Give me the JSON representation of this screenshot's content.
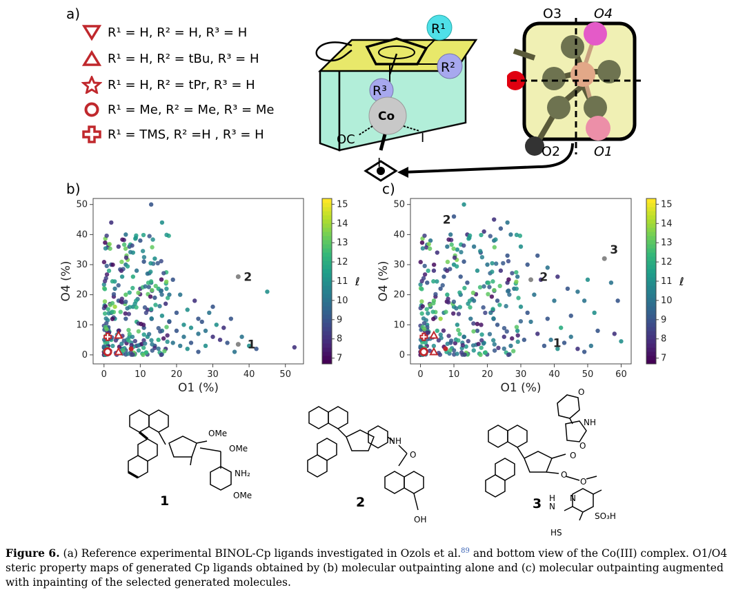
{
  "panel_labels": {
    "a": "a)",
    "b": "b)",
    "c": "c)"
  },
  "legend": [
    {
      "symbol": "triangle-down-icon",
      "text": "R¹ = H, R² = H, R³ = H"
    },
    {
      "symbol": "triangle-up-icon",
      "text": "R¹ = H, R² = tBu, R³ = H"
    },
    {
      "symbol": "star-icon",
      "text": "R¹ = H, R² = tPr, R³ = H"
    },
    {
      "symbol": "circle-icon",
      "text": "R¹ = Me, R² = Me, R³ = Me"
    },
    {
      "symbol": "cross-icon",
      "text": "R¹ = TMS, R² =H , R³ = H"
    }
  ],
  "complex_labels": {
    "r1": "R¹",
    "r2": "R²",
    "r3": "R³",
    "metal": "Co",
    "co": "OC",
    "i1": "I",
    "i2": "I"
  },
  "quadrant_labels": {
    "o1": "O1",
    "o2": "O2",
    "o3": "O3",
    "o4": "O4"
  },
  "colors": {
    "marker_red": "#c0282d",
    "cyan": "#4fe0e8",
    "lavender": "#a7a8ee",
    "yellow_face": "#e8e86a",
    "teal_face": "#aeeed8"
  },
  "chart_data": [
    {
      "type": "scatter",
      "panel": "b)",
      "xlabel": "O1 (%)",
      "ylabel": "O4 (%)",
      "colorbar_label": "ℓ",
      "xlim": [
        -3,
        55
      ],
      "ylim": [
        -3,
        52
      ],
      "xticks": [
        0,
        10,
        20,
        30,
        40,
        50
      ],
      "yticks": [
        0,
        10,
        20,
        30,
        40,
        50
      ],
      "colorbar_ticks": [
        7,
        8,
        9,
        10,
        11,
        12,
        13,
        14,
        15
      ],
      "colorbar_range": [
        6.7,
        15.3
      ],
      "annotations": [
        {
          "text": "1",
          "x": 38,
          "y": 3.5
        },
        {
          "text": "2",
          "x": 37,
          "y": 26
        }
      ],
      "highlighted": [
        {
          "x": 37,
          "y": 3.5
        },
        {
          "x": 37,
          "y": 26
        }
      ],
      "points": [
        [
          13,
          50,
          9
        ],
        [
          2,
          44,
          8
        ],
        [
          16,
          44,
          11
        ],
        [
          45,
          21,
          11
        ],
        [
          52.5,
          2.5,
          8
        ],
        [
          35,
          12,
          9
        ],
        [
          30,
          16,
          9
        ],
        [
          36,
          1,
          10
        ],
        [
          26,
          7,
          10
        ],
        [
          22,
          10,
          11
        ],
        [
          20,
          14,
          9
        ],
        [
          18,
          20,
          10
        ],
        [
          14,
          32,
          11
        ],
        [
          10,
          38,
          9
        ],
        [
          8,
          26,
          12
        ],
        [
          6,
          30,
          10
        ],
        [
          4,
          18,
          9
        ],
        [
          3,
          12,
          11
        ],
        [
          12,
          15,
          8
        ],
        [
          16,
          8,
          10
        ],
        [
          24,
          4,
          9
        ],
        [
          28,
          3,
          11
        ],
        [
          30,
          6,
          8
        ],
        [
          19,
          4,
          10
        ],
        [
          15,
          5,
          12
        ],
        [
          11,
          9,
          9
        ],
        [
          9,
          3,
          8
        ],
        [
          7,
          6,
          11
        ],
        [
          5,
          2,
          10
        ],
        [
          4,
          8,
          9
        ],
        [
          2,
          5,
          12
        ],
        [
          1,
          3,
          8
        ],
        [
          3,
          22,
          10
        ],
        [
          6,
          12,
          9
        ],
        [
          8,
          16,
          11
        ],
        [
          10,
          22,
          8
        ],
        [
          12,
          27,
          10
        ],
        [
          14,
          19,
          9
        ],
        [
          16,
          13,
          11
        ],
        [
          18,
          11,
          8
        ],
        [
          20,
          8,
          9
        ],
        [
          22,
          6,
          10
        ],
        [
          24,
          9,
          11
        ],
        [
          26,
          12,
          9
        ],
        [
          28,
          8,
          10
        ],
        [
          32,
          5,
          8
        ],
        [
          34,
          4,
          9
        ],
        [
          38,
          6,
          10
        ],
        [
          40,
          3,
          11
        ],
        [
          42,
          2,
          9
        ],
        [
          2,
          30,
          9
        ],
        [
          4,
          36,
          8
        ],
        [
          6,
          40,
          10
        ],
        [
          8,
          34,
          11
        ],
        [
          11,
          31,
          9
        ],
        [
          13,
          24,
          10
        ],
        [
          15,
          22,
          12
        ],
        [
          17,
          17,
          8
        ],
        [
          19,
          25,
          9
        ],
        [
          21,
          20,
          10
        ],
        [
          23,
          15,
          11
        ],
        [
          25,
          18,
          8
        ],
        [
          27,
          11,
          9
        ],
        [
          29,
          14,
          10
        ],
        [
          31,
          10,
          11
        ],
        [
          33,
          9,
          8
        ],
        [
          6,
          20,
          13
        ],
        [
          3,
          16,
          14
        ],
        [
          9,
          11,
          12
        ],
        [
          1,
          9,
          10
        ],
        [
          2,
          14,
          9
        ],
        [
          5,
          26,
          11
        ],
        [
          7,
          36,
          9
        ],
        [
          9,
          28,
          10
        ],
        [
          12,
          6,
          11
        ],
        [
          14,
          3,
          9
        ],
        [
          17,
          2,
          8
        ],
        [
          21,
          3,
          10
        ],
        [
          23,
          2,
          11
        ],
        [
          26,
          1,
          9
        ],
        [
          0,
          1,
          7
        ]
      ]
    },
    {
      "type": "scatter",
      "panel": "c)",
      "xlabel": "O1 (%)",
      "ylabel": "O4 (%)",
      "colorbar_label": "ℓ",
      "xlim": [
        -3,
        63
      ],
      "ylim": [
        -3,
        52
      ],
      "xticks": [
        0,
        10,
        20,
        30,
        40,
        50,
        60
      ],
      "yticks": [
        0,
        10,
        20,
        30,
        40,
        50
      ],
      "colorbar_ticks": [
        7,
        8,
        9,
        10,
        11,
        12,
        13,
        14,
        15
      ],
      "colorbar_range": [
        6.7,
        15.3
      ],
      "annotations": [
        {
          "text": "1",
          "x": 38,
          "y": 4
        },
        {
          "text": "2",
          "x": 34,
          "y": 26
        },
        {
          "text": "2",
          "x": 5,
          "y": 45
        },
        {
          "text": "3",
          "x": 55,
          "y": 35
        }
      ],
      "highlighted": [
        {
          "x": 33,
          "y": 25
        },
        {
          "x": 55,
          "y": 32
        }
      ],
      "points": [
        [
          13,
          50,
          11
        ],
        [
          10,
          46,
          9
        ],
        [
          22,
          45,
          8
        ],
        [
          26,
          44,
          10
        ],
        [
          55,
          32,
          12
        ],
        [
          60,
          4.5,
          11
        ],
        [
          57,
          24,
          10
        ],
        [
          59,
          18,
          9
        ],
        [
          58,
          7,
          8
        ],
        [
          50,
          25,
          11
        ],
        [
          47,
          21,
          10
        ],
        [
          45,
          13,
          9
        ],
        [
          42,
          9,
          12
        ],
        [
          40,
          18,
          10
        ],
        [
          38,
          12,
          9
        ],
        [
          36,
          25,
          8
        ],
        [
          34,
          20,
          10
        ],
        [
          32,
          30,
          9
        ],
        [
          30,
          16,
          11
        ],
        [
          28,
          22,
          10
        ],
        [
          26,
          33,
          9
        ],
        [
          24,
          28,
          8
        ],
        [
          22,
          38,
          10
        ],
        [
          20,
          24,
          11
        ],
        [
          18,
          34,
          9
        ],
        [
          16,
          18,
          10
        ],
        [
          14,
          40,
          8
        ],
        [
          12,
          26,
          9
        ],
        [
          10,
          30,
          11
        ],
        [
          8,
          36,
          10
        ],
        [
          6,
          22,
          9
        ],
        [
          4,
          28,
          8
        ],
        [
          3,
          16,
          10
        ],
        [
          2,
          10,
          11
        ],
        [
          1,
          5,
          9
        ],
        [
          5,
          8,
          12
        ],
        [
          7,
          14,
          10
        ],
        [
          9,
          4,
          9
        ],
        [
          11,
          10,
          11
        ],
        [
          13,
          6,
          8
        ],
        [
          15,
          12,
          10
        ],
        [
          17,
          8,
          9
        ],
        [
          19,
          4,
          11
        ],
        [
          21,
          14,
          10
        ],
        [
          23,
          10,
          9
        ],
        [
          25,
          6,
          8
        ],
        [
          27,
          3,
          10
        ],
        [
          29,
          8,
          11
        ],
        [
          31,
          5,
          9
        ],
        [
          33,
          11,
          10
        ],
        [
          35,
          7,
          8
        ],
        [
          37,
          3,
          9
        ],
        [
          39,
          5,
          10
        ],
        [
          41,
          2,
          11
        ],
        [
          43,
          4,
          9
        ],
        [
          45,
          6,
          10
        ],
        [
          47,
          2,
          8
        ],
        [
          49,
          1,
          9
        ],
        [
          51,
          3,
          10
        ],
        [
          53,
          8,
          9
        ],
        [
          52,
          14,
          11
        ],
        [
          49,
          18,
          10
        ],
        [
          44,
          22,
          9
        ],
        [
          41,
          26,
          8
        ],
        [
          38,
          29,
          10
        ],
        [
          35,
          33,
          9
        ],
        [
          30,
          36,
          11
        ],
        [
          27,
          40,
          10
        ],
        [
          24,
          42,
          9
        ],
        [
          19,
          41,
          8
        ],
        [
          16,
          36,
          10
        ],
        [
          13,
          31,
          9
        ],
        [
          11,
          35,
          11
        ],
        [
          9,
          40,
          10
        ],
        [
          7,
          26,
          9
        ],
        [
          5,
          34,
          8
        ],
        [
          3,
          38,
          10
        ],
        [
          2,
          24,
          9
        ],
        [
          4,
          18,
          13
        ],
        [
          6,
          12,
          14
        ],
        [
          8,
          20,
          12
        ],
        [
          10,
          16,
          11
        ],
        [
          12,
          20,
          10
        ],
        [
          14,
          24,
          9
        ],
        [
          17,
          28,
          11
        ],
        [
          20,
          30,
          10
        ],
        [
          23,
          18,
          9
        ],
        [
          26,
          24,
          8
        ],
        [
          29,
          26,
          10
        ],
        [
          32,
          14,
          9
        ],
        [
          0,
          1,
          7
        ]
      ]
    }
  ],
  "molecules": [
    {
      "label": "1",
      "substituents": [
        "OMe",
        "OMe",
        "NH₂",
        "OMe"
      ]
    },
    {
      "label": "2",
      "substituents": [
        "NH",
        "O",
        "OH"
      ]
    },
    {
      "label": "3",
      "substituents": [
        "O",
        "NH",
        "O",
        "O",
        "O",
        "O",
        "H",
        "N",
        "N",
        "SO₃H",
        "HS"
      ]
    }
  ],
  "caption": {
    "bold": "Figure 6.",
    "text_part1": " (a) Reference experimental BINOL-Cp ligands investigated in Ozols et al.",
    "ref": "89",
    "text_part2": " and bottom view of the Co(III) complex. O1/O4 steric property maps of generated Cp ligands obtained by (b) molecular outpainting alone and (c) molecular outpainting augmented with inpainting of the selected generated molecules."
  }
}
